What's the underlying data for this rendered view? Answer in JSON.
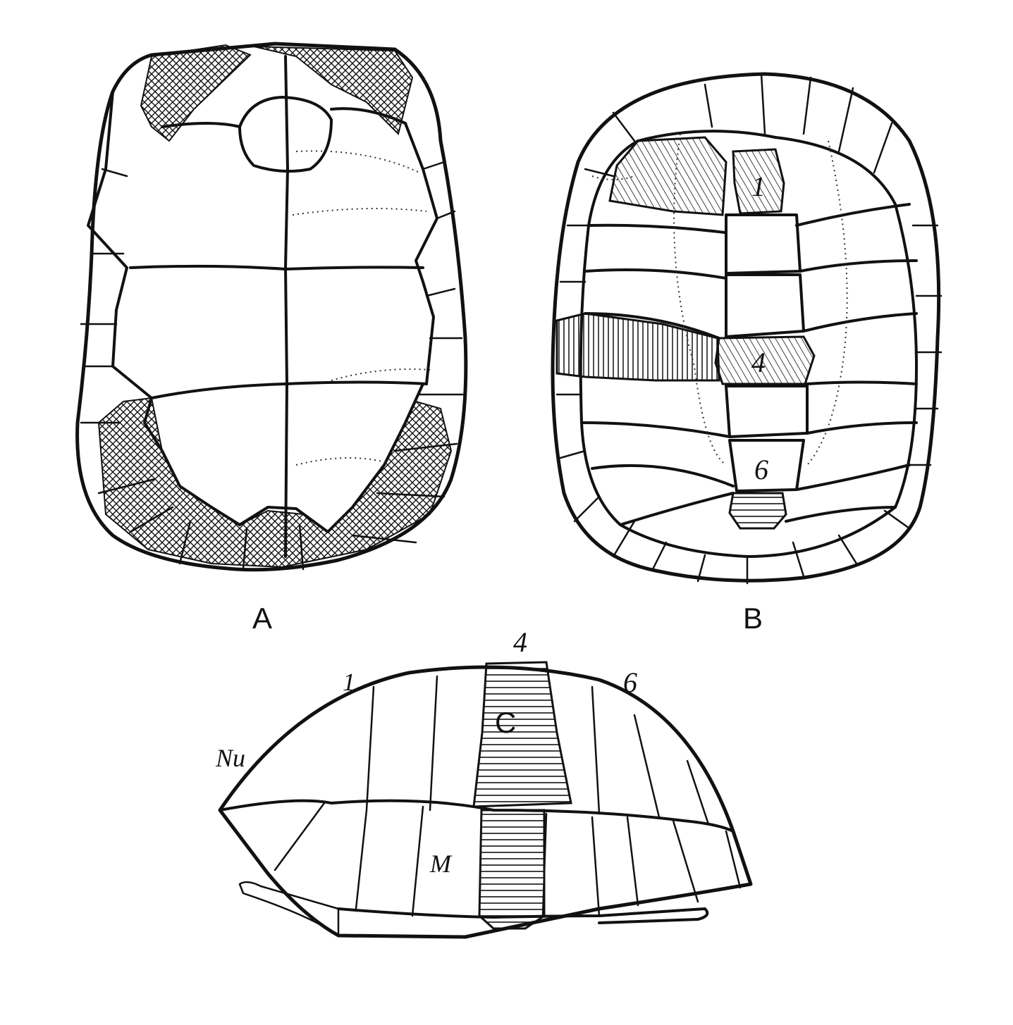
{
  "panels": {
    "a": {
      "label": "A"
    },
    "b": {
      "label": "B",
      "scute_labels": [
        "1",
        "4",
        "6"
      ]
    },
    "c": {
      "label": "C",
      "scute_labels": [
        "1",
        "4",
        "6"
      ],
      "nuchal_label": "Nu",
      "marginal_label": "M"
    }
  },
  "hatching_color": "#111111"
}
